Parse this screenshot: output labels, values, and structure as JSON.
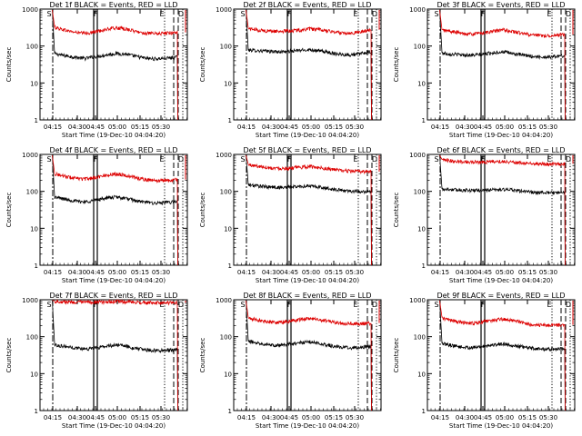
{
  "page": {
    "background": "#ffffff",
    "event_color": "#000000",
    "lld_color": "#dd0000"
  },
  "chart_data": [
    {
      "type": "line",
      "title": "Det 1f BLACK = Events, RED = LLD",
      "xlabel": "Start Time (19-Dec-10 04:04:20)",
      "ylabel": "Counts/sec",
      "yscale": "log",
      "ylim": [
        1,
        1000
      ],
      "y_ticks": [
        "1",
        "10",
        "100",
        "1000"
      ],
      "x_ticks": [
        "04:15",
        "04:30",
        "04:45",
        "05:00",
        "05:15",
        "05:30"
      ],
      "markers": [
        "S",
        "F",
        "E",
        "D"
      ],
      "series": [
        {
          "name": "Events",
          "color": "#000000",
          "values": [
            62,
            55,
            50,
            46,
            52,
            57,
            63,
            60,
            52,
            46,
            45,
            47,
            50
          ]
        },
        {
          "name": "LLD",
          "color": "#dd0000",
          "values": [
            320,
            270,
            235,
            220,
            245,
            280,
            310,
            290,
            245,
            220,
            215,
            225,
            235
          ]
        }
      ]
    },
    {
      "type": "line",
      "title": "Det 2f BLACK = Events, RED = LLD",
      "xlabel": "Start Time (19-Dec-10 04:04:20)",
      "ylabel": "Counts/sec",
      "yscale": "log",
      "ylim": [
        1,
        1000
      ],
      "y_ticks": [
        "1",
        "10",
        "100",
        "1000"
      ],
      "x_ticks": [
        "04:15",
        "04:30",
        "04:45",
        "05:00",
        "05:15",
        "05:30"
      ],
      "markers": [
        "S",
        "F",
        "E",
        "D"
      ],
      "series": [
        {
          "name": "Events",
          "color": "#000000",
          "values": [
            78,
            75,
            72,
            70,
            72,
            76,
            80,
            74,
            66,
            60,
            58,
            62,
            70
          ]
        },
        {
          "name": "LLD",
          "color": "#dd0000",
          "values": [
            300,
            270,
            255,
            250,
            258,
            270,
            290,
            275,
            250,
            230,
            225,
            240,
            275
          ]
        }
      ]
    },
    {
      "type": "line",
      "title": "Det 3f BLACK = Events, RED = LLD",
      "xlabel": "Start Time (19-Dec-10 04:04:20)",
      "ylabel": "Counts/sec",
      "yscale": "log",
      "ylim": [
        1,
        1000
      ],
      "y_ticks": [
        "1",
        "10",
        "100",
        "1000"
      ],
      "x_ticks": [
        "04:15",
        "04:30",
        "04:45",
        "05:00",
        "05:15",
        "05:30"
      ],
      "markers": [
        "S",
        "F",
        "E",
        "D"
      ],
      "series": [
        {
          "name": "Events",
          "color": "#000000",
          "values": [
            65,
            60,
            58,
            56,
            60,
            66,
            70,
            62,
            56,
            52,
            50,
            52,
            55
          ]
        },
        {
          "name": "LLD",
          "color": "#dd0000",
          "values": [
            270,
            245,
            220,
            210,
            225,
            250,
            275,
            245,
            215,
            195,
            190,
            195,
            205
          ]
        }
      ]
    },
    {
      "type": "line",
      "title": "Det 4f BLACK = Events, RED = LLD",
      "xlabel": "Start Time (19-Dec-10 04:04:20)",
      "ylabel": "Counts/sec",
      "yscale": "log",
      "ylim": [
        1,
        1000
      ],
      "y_ticks": [
        "1",
        "10",
        "100",
        "1000"
      ],
      "x_ticks": [
        "04:15",
        "04:30",
        "04:45",
        "05:00",
        "05:15",
        "05:30"
      ],
      "markers": [
        "S",
        "F",
        "E",
        "D"
      ],
      "series": [
        {
          "name": "Events",
          "color": "#000000",
          "values": [
            70,
            62,
            55,
            52,
            58,
            66,
            70,
            64,
            55,
            50,
            48,
            50,
            52
          ]
        },
        {
          "name": "LLD",
          "color": "#dd0000",
          "values": [
            300,
            255,
            225,
            215,
            240,
            270,
            300,
            270,
            230,
            205,
            195,
            200,
            210
          ]
        }
      ]
    },
    {
      "type": "line",
      "title": "Det 5f BLACK = Events, RED = LLD",
      "xlabel": "Start Time (19-Dec-10 04:04:20)",
      "ylabel": "Counts/sec",
      "yscale": "log",
      "ylim": [
        1,
        1000
      ],
      "y_ticks": [
        "1",
        "10",
        "100",
        "1000"
      ],
      "x_ticks": [
        "04:15",
        "04:30",
        "04:45",
        "05:00",
        "05:15",
        "05:30"
      ],
      "markers": [
        "S",
        "F",
        "E",
        "D"
      ],
      "series": [
        {
          "name": "Events",
          "color": "#000000",
          "values": [
            150,
            140,
            132,
            128,
            130,
            136,
            140,
            130,
            118,
            108,
            102,
            100,
            98
          ]
        },
        {
          "name": "LLD",
          "color": "#dd0000",
          "values": [
            520,
            480,
            440,
            420,
            425,
            445,
            470,
            440,
            400,
            370,
            355,
            345,
            340
          ]
        }
      ]
    },
    {
      "type": "line",
      "title": "Det 6f BLACK = Events, RED = LLD",
      "xlabel": "Start Time (19-Dec-10 04:04:20)",
      "ylabel": "Counts/sec",
      "yscale": "log",
      "ylim": [
        1,
        1000
      ],
      "y_ticks": [
        "1",
        "10",
        "100",
        "1000"
      ],
      "x_ticks": [
        "04:15",
        "04:30",
        "04:45",
        "05:00",
        "05:15",
        "05:30"
      ],
      "markers": [
        "S",
        "F",
        "E",
        "D"
      ],
      "series": [
        {
          "name": "Events",
          "color": "#000000",
          "values": [
            115,
            112,
            108,
            106,
            108,
            110,
            112,
            108,
            100,
            94,
            92,
            92,
            90
          ]
        },
        {
          "name": "LLD",
          "color": "#dd0000",
          "values": [
            700,
            670,
            640,
            620,
            625,
            640,
            650,
            620,
            580,
            555,
            545,
            550,
            560
          ]
        }
      ]
    },
    {
      "type": "line",
      "title": "Det 7f BLACK = Events, RED = LLD",
      "xlabel": "Start Time (19-Dec-10 04:04:20)",
      "ylabel": "Counts/sec",
      "yscale": "log",
      "ylim": [
        1,
        1000
      ],
      "y_ticks": [
        "1",
        "10",
        "100",
        "1000"
      ],
      "x_ticks": [
        "04:15",
        "04:30",
        "04:45",
        "05:00",
        "05:15",
        "05:30"
      ],
      "markers": [
        "S",
        "F",
        "E",
        "D"
      ],
      "series": [
        {
          "name": "Events",
          "color": "#000000",
          "values": [
            60,
            55,
            50,
            47,
            50,
            55,
            60,
            55,
            48,
            44,
            42,
            43,
            45
          ]
        },
        {
          "name": "LLD",
          "color": "#dd0000",
          "values": [
            900,
            880,
            860,
            850,
            860,
            880,
            900,
            880,
            850,
            830,
            820,
            825,
            830
          ]
        }
      ]
    },
    {
      "type": "line",
      "title": "Det 8f BLACK = Events, RED = LLD",
      "xlabel": "Start Time (19-Dec-10 04:04:20)",
      "ylabel": "Counts/sec",
      "yscale": "log",
      "ylim": [
        1,
        1000
      ],
      "y_ticks": [
        "1",
        "10",
        "100",
        "1000"
      ],
      "x_ticks": [
        "04:15",
        "04:30",
        "04:45",
        "05:00",
        "05:15",
        "05:30"
      ],
      "markers": [
        "S",
        "F",
        "E",
        "D"
      ],
      "series": [
        {
          "name": "Events",
          "color": "#000000",
          "values": [
            75,
            68,
            62,
            58,
            62,
            68,
            72,
            66,
            58,
            52,
            50,
            52,
            55
          ]
        },
        {
          "name": "LLD",
          "color": "#dd0000",
          "values": [
            320,
            280,
            255,
            245,
            265,
            290,
            310,
            285,
            255,
            235,
            225,
            225,
            235
          ]
        }
      ]
    },
    {
      "type": "line",
      "title": "Det 9f BLACK = Events, RED = LLD",
      "xlabel": "Start Time (19-Dec-10 04:04:20)",
      "ylabel": "Counts/sec",
      "yscale": "log",
      "ylim": [
        1,
        1000
      ],
      "y_ticks": [
        "1",
        "10",
        "100",
        "1000"
      ],
      "x_ticks": [
        "04:15",
        "04:30",
        "04:45",
        "05:00",
        "05:15",
        "05:30"
      ],
      "markers": [
        "S",
        "F",
        "E",
        "D"
      ],
      "series": [
        {
          "name": "Events",
          "color": "#000000",
          "values": [
            65,
            58,
            52,
            50,
            55,
            60,
            64,
            58,
            52,
            48,
            46,
            46,
            48
          ]
        },
        {
          "name": "LLD",
          "color": "#dd0000",
          "values": [
            320,
            270,
            240,
            230,
            250,
            280,
            300,
            270,
            235,
            210,
            205,
            205,
            210
          ]
        }
      ]
    }
  ]
}
